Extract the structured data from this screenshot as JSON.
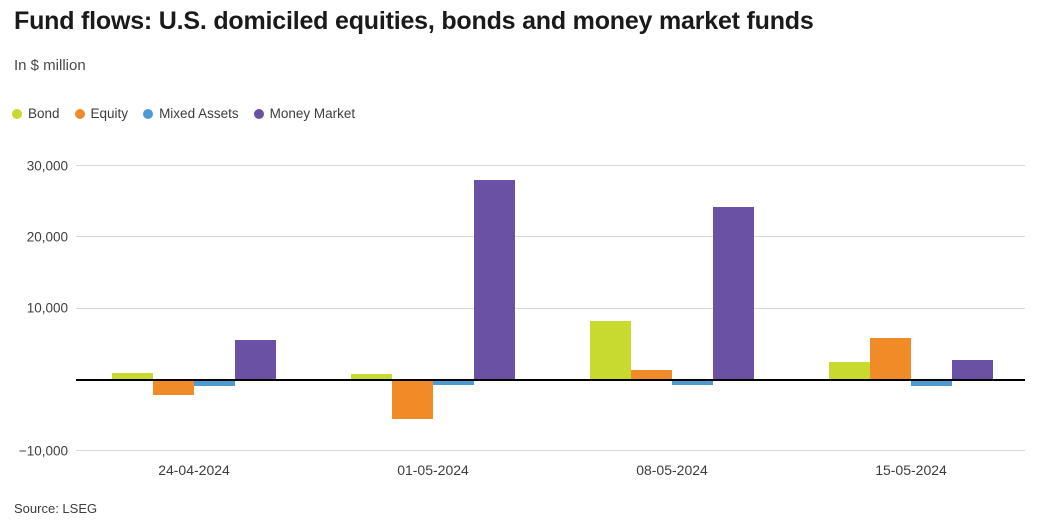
{
  "chart_data": {
    "type": "bar",
    "variant": "grouped",
    "title": "Fund flows: U.S. domiciled equities, bonds and money market funds",
    "subtitle": "In $ million",
    "source": "Source: LSEG",
    "categories": [
      "24-04-2024",
      "01-05-2024",
      "08-05-2024",
      "15-05-2024"
    ],
    "series": [
      {
        "name": "Bond",
        "color": "#c8d930",
        "values": [
          900,
          750,
          8200,
          2400
        ]
      },
      {
        "name": "Equity",
        "color": "#f18b28",
        "values": [
          -2000,
          -5300,
          1200,
          5700
        ]
      },
      {
        "name": "Mixed Assets",
        "color": "#4e9bd4",
        "values": [
          -750,
          -500,
          -500,
          -650
        ]
      },
      {
        "name": "Money Market",
        "color": "#6a51a3",
        "values": [
          5500,
          27900,
          24100,
          2700
        ]
      }
    ],
    "ylabel": "",
    "xlabel": "",
    "ylim": [
      -10500,
      31800
    ],
    "yticks": [
      30000,
      20000,
      10000,
      -10000
    ],
    "zero_baseline": true,
    "grid": "horizontal",
    "legend_position": "top-left",
    "colors": {
      "gridline": "#d9d9d9",
      "zero_line": "#000000",
      "title_text": "#1a1a1a",
      "body_text": "#3d3d3d",
      "background": "#ffffff"
    }
  }
}
